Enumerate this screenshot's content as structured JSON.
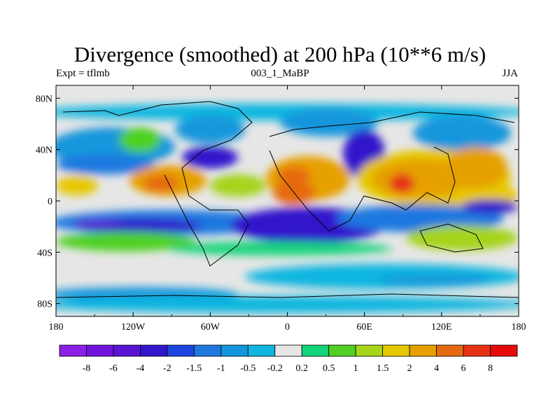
{
  "title": "Divergence (smoothed) at 200 hPa (10**6 m/s)",
  "subtitle_left": "Expt = tflmb",
  "subtitle_center": "003_1_MaBP",
  "subtitle_right": "JJA",
  "chart_data": {
    "type": "heatmap",
    "variable": "Divergence (smoothed) at 200 hPa",
    "units": "10**6 m/s",
    "experiment": "tflmb",
    "run": "003_1_MaBP",
    "season": "JJA",
    "x_ticks": [
      "180",
      "120W",
      "60W",
      "0",
      "60E",
      "120E",
      "180"
    ],
    "x_range": [
      -180,
      180
    ],
    "y_ticks": [
      "80N",
      "40N",
      "0",
      "40S",
      "80S"
    ],
    "y_range": [
      -90,
      90
    ],
    "colorbar": {
      "labels": [
        "-8",
        "-6",
        "-4",
        "-2",
        "-1.5",
        "-1",
        "-0.5",
        "-0.2",
        "0.2",
        "0.5",
        "1",
        "1.5",
        "2",
        "4",
        "6",
        "8"
      ],
      "colors": [
        "#8c1fe6",
        "#7214de",
        "#5a14d2",
        "#3216cc",
        "#1c46de",
        "#1f78e0",
        "#1496dc",
        "#10b6e0",
        "#e6e6e6",
        "#12d47a",
        "#50d024",
        "#a6d41a",
        "#e6c800",
        "#e6a000",
        "#e66a10",
        "#e63214",
        "#e60a0a"
      ]
    }
  }
}
